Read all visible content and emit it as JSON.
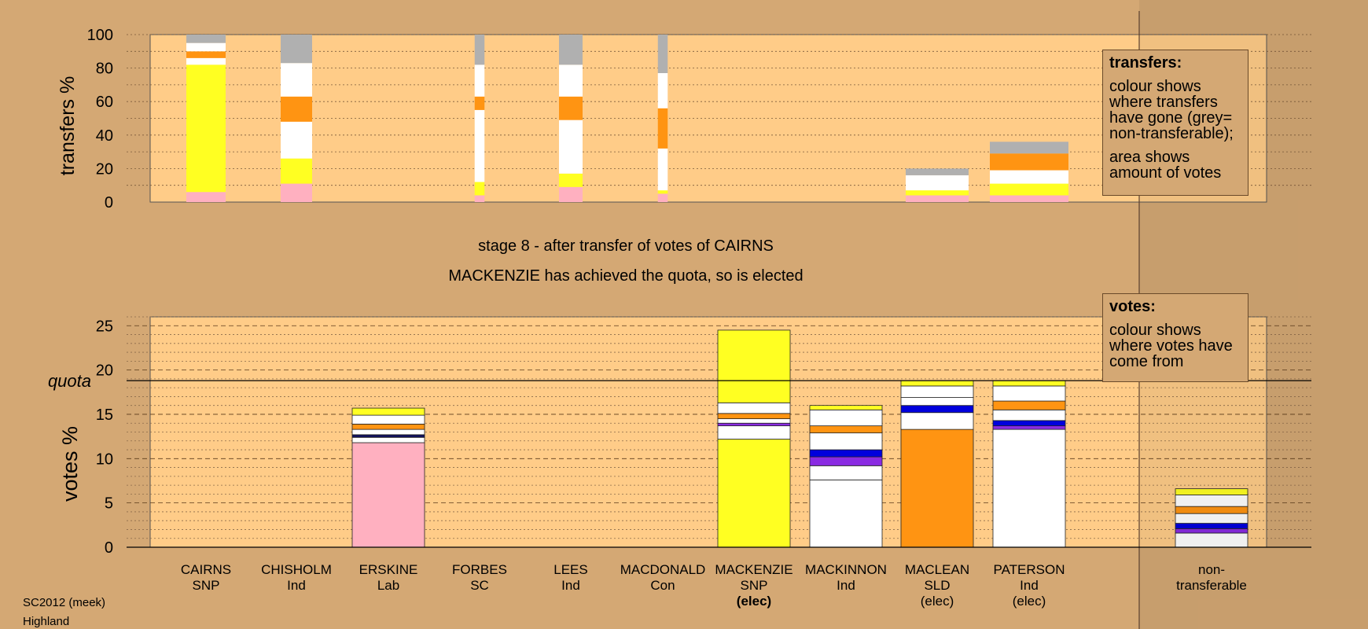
{
  "chart_data": [
    {
      "type": "bar",
      "stacked": true,
      "ylabel": "transfers %",
      "ylim": [
        0,
        100
      ],
      "yticks": [
        0,
        20,
        40,
        60,
        80,
        100
      ],
      "grid": true,
      "legend": {
        "title": "transfers:",
        "paragraphs": [
          "colour shows where transfers have gone (grey= non-transferable);",
          "area shows amount of votes"
        ],
        "placement": "top-right"
      },
      "bars": [
        {
          "candidate": "CAIRNS",
          "width": 1.0,
          "segments": [
            {
              "color": "#FFB0C0",
              "value": 6
            },
            {
              "color": "#FFFF22",
              "value": 76
            },
            {
              "color": "#FFFFFF",
              "value": 4
            },
            {
              "color": "#FF9412",
              "value": 4
            },
            {
              "color": "#FFFFFF",
              "value": 5
            },
            {
              "color": "#B0B0B0",
              "value": 5
            }
          ]
        },
        {
          "candidate": "CHISHOLM",
          "width": 0.8,
          "segments": [
            {
              "color": "#FFB0C0",
              "value": 11
            },
            {
              "color": "#FFFF22",
              "value": 15
            },
            {
              "color": "#FFFFFF",
              "value": 22
            },
            {
              "color": "#FF9412",
              "value": 15
            },
            {
              "color": "#FFFFFF",
              "value": 20
            },
            {
              "color": "#B0B0B0",
              "value": 17
            }
          ]
        },
        {
          "candidate": "FORBES",
          "width": 0.25,
          "segments": [
            {
              "color": "#FFB0C0",
              "value": 4
            },
            {
              "color": "#FFFF22",
              "value": 8
            },
            {
              "color": "#FFFFFF",
              "value": 43
            },
            {
              "color": "#FF9412",
              "value": 8
            },
            {
              "color": "#FFFFFF",
              "value": 19
            },
            {
              "color": "#B0B0B0",
              "value": 18
            }
          ]
        },
        {
          "candidate": "LEES",
          "width": 0.6,
          "segments": [
            {
              "color": "#FFB0C0",
              "value": 9
            },
            {
              "color": "#FFFF22",
              "value": 8
            },
            {
              "color": "#FFFFFF",
              "value": 32
            },
            {
              "color": "#FF9412",
              "value": 14
            },
            {
              "color": "#FFFFFF",
              "value": 19
            },
            {
              "color": "#B0B0B0",
              "value": 18
            }
          ]
        },
        {
          "candidate": "MACDONALD",
          "width": 0.25,
          "segments": [
            {
              "color": "#FFB0C0",
              "value": 5
            },
            {
              "color": "#FFFF22",
              "value": 2
            },
            {
              "color": "#FFFFFF",
              "value": 25
            },
            {
              "color": "#FF9412",
              "value": 24
            },
            {
              "color": "#FFFFFF",
              "value": 21
            },
            {
              "color": "#B0B0B0",
              "value": 23
            }
          ]
        },
        {
          "candidate": "MACLEAN",
          "width": 1.6,
          "segments": [
            {
              "color": "#FFB0C0",
              "value": 4
            },
            {
              "color": "#FFFF22",
              "value": 3
            },
            {
              "color": "#FFFFFF",
              "value": 9
            },
            {
              "color": "#B0B0B0",
              "value": 4
            }
          ]
        },
        {
          "candidate": "PATERSON",
          "width": 2.0,
          "segments": [
            {
              "color": "#FFB0C0",
              "value": 4
            },
            {
              "color": "#FFFF22",
              "value": 7
            },
            {
              "color": "#FFFFFF",
              "value": 8
            },
            {
              "color": "#FF9412",
              "value": 10
            },
            {
              "color": "#B0B0B0",
              "value": 7
            }
          ]
        }
      ]
    },
    {
      "type": "bar",
      "stacked": true,
      "ylabel": "votes %",
      "ylim": [
        0,
        26
      ],
      "yticks": [
        0,
        5,
        10,
        15,
        20,
        25
      ],
      "quota": 18.8,
      "quota_label": "quota",
      "grid": true,
      "legend": {
        "title": "votes:",
        "paragraphs": [
          "colour shows where votes have come from"
        ],
        "placement": "top-right"
      },
      "bars": [
        {
          "candidate": "ERSKINE",
          "segments": [
            {
              "color": "#FFB0C0",
              "value": 11.8
            },
            {
              "color": "#FFFFFF",
              "value": 0.6
            },
            {
              "color": "#101060",
              "value": 0.3
            },
            {
              "color": "#FFFFFF",
              "value": 0.6
            },
            {
              "color": "#FF9412",
              "value": 0.6
            },
            {
              "color": "#FFFFFF",
              "value": 1.0
            },
            {
              "color": "#FFFF22",
              "value": 0.8
            }
          ]
        },
        {
          "candidate": "MACKENZIE",
          "segments": [
            {
              "color": "#FFFF22",
              "value": 12.2
            },
            {
              "color": "#FFFFFF",
              "value": 1.5
            },
            {
              "color": "#8A2BE2",
              "value": 0.3
            },
            {
              "color": "#FFFFFF",
              "value": 0.5
            },
            {
              "color": "#FF9412",
              "value": 0.6
            },
            {
              "color": "#FFFFFF",
              "value": 1.2
            },
            {
              "color": "#FFFF22",
              "value": 8.2
            }
          ]
        },
        {
          "candidate": "MACKINNON",
          "segments": [
            {
              "color": "#FFFFFF",
              "value": 7.6
            },
            {
              "color": "#FFFFFF",
              "value": 1.6
            },
            {
              "color": "#8A2BE2",
              "value": 1.0
            },
            {
              "color": "#0000DD",
              "value": 0.8
            },
            {
              "color": "#FFFFFF",
              "value": 1.9
            },
            {
              "color": "#FF9412",
              "value": 0.8
            },
            {
              "color": "#FFFFFF",
              "value": 1.8
            },
            {
              "color": "#FFFF22",
              "value": 0.5
            }
          ]
        },
        {
          "candidate": "MACLEAN",
          "segments": [
            {
              "color": "#FF9412",
              "value": 13.3
            },
            {
              "color": "#FFFFFF",
              "value": 1.9
            },
            {
              "color": "#0000DD",
              "value": 0.8
            },
            {
              "color": "#FFFFFF",
              "value": 0.9
            },
            {
              "color": "#FFFFFF",
              "value": 1.3
            },
            {
              "color": "#FFFF22",
              "value": 0.6
            }
          ]
        },
        {
          "candidate": "PATERSON",
          "segments": [
            {
              "color": "#FFFFFF",
              "value": 13.3
            },
            {
              "color": "#8A2BE2",
              "value": 0.4
            },
            {
              "color": "#0000DD",
              "value": 0.6
            },
            {
              "color": "#FFFFFF",
              "value": 1.2
            },
            {
              "color": "#FF9412",
              "value": 1.0
            },
            {
              "color": "#FFFFFF",
              "value": 1.7
            },
            {
              "color": "#FFFF22",
              "value": 0.6
            }
          ]
        },
        {
          "candidate": "non-transferable",
          "segments": [
            {
              "color": "#FFFFFF",
              "value": 1.6
            },
            {
              "color": "#8A2BE2",
              "value": 0.5
            },
            {
              "color": "#0000DD",
              "value": 0.6
            },
            {
              "color": "#FFFFFF",
              "value": 1.1
            },
            {
              "color": "#FF9412",
              "value": 0.8
            },
            {
              "color": "#FFFFFF",
              "value": 1.3
            },
            {
              "color": "#FFFF22",
              "value": 0.7
            }
          ]
        }
      ]
    }
  ],
  "candidates": [
    {
      "name": "CAIRNS",
      "party": "SNP",
      "status": ""
    },
    {
      "name": "CHISHOLM",
      "party": "Ind",
      "status": ""
    },
    {
      "name": "ERSKINE",
      "party": "Lab",
      "status": ""
    },
    {
      "name": "FORBES",
      "party": "SC",
      "status": ""
    },
    {
      "name": "LEES",
      "party": "Ind",
      "status": ""
    },
    {
      "name": "MACDONALD",
      "party": "Con",
      "status": ""
    },
    {
      "name": "MACKENZIE",
      "party": "SNP",
      "status": "(elec)"
    },
    {
      "name": "MACKINNON",
      "party": "Ind",
      "status": ""
    },
    {
      "name": "MACLEAN",
      "party": "SLD",
      "status": "(elec)"
    },
    {
      "name": "PATERSON",
      "party": "Ind",
      "status": "(elec)"
    },
    {
      "name": "non-",
      "party": "transferable",
      "status": ""
    }
  ],
  "stage": {
    "line1": "stage 8 - after transfer of votes of CAIRNS",
    "line2": "MACKENZIE has achieved the quota, so is elected"
  },
  "footer": {
    "line1": "SC2012 (meek)",
    "line2": "Highland"
  },
  "colors": {
    "background": "#D4A874",
    "plot": "#FFCC88",
    "grey": "#B0B0B0",
    "yellow": "#FFFF22",
    "orange": "#FF9412",
    "pink": "#FFB0C0",
    "blue": "#0000DD",
    "purple": "#8A2BE2"
  }
}
